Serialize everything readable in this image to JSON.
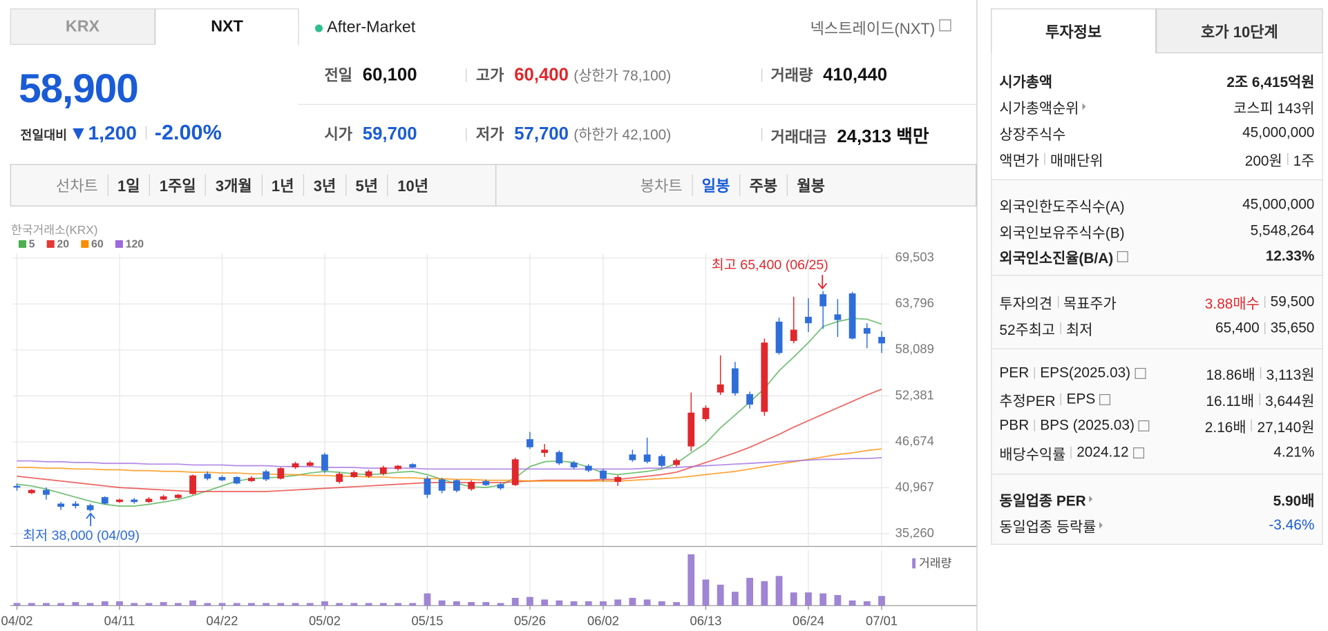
{
  "header": {
    "tabs": [
      "KRX",
      "NXT"
    ],
    "session": "After-Market",
    "venue": "넥스트레이드(NXT)"
  },
  "quote": {
    "price": "58,900",
    "change_label": "전일대비",
    "change": "▼1,200",
    "change_rate": "-2.00%"
  },
  "stats": {
    "rows": [
      [
        {
          "label": "전일",
          "value": "60,100"
        },
        {
          "label": "고가",
          "value": "60,400",
          "color": "#e0272c",
          "note": "(상한가 78,100)"
        },
        {
          "label": "거래량",
          "value": "410,440"
        }
      ],
      [
        {
          "label": "시가",
          "value": "59,700",
          "color": "#1a5bd6"
        },
        {
          "label": "저가",
          "value": "57,700",
          "color": "#1a5bd6",
          "note": "(하한가 42,100)"
        },
        {
          "label": "거래대금",
          "value": "24,313 백만"
        }
      ]
    ]
  },
  "toolbar": {
    "line_chart": {
      "label": "선차트",
      "periods": [
        "1일",
        "1주일",
        "3개월",
        "1년",
        "3년",
        "5년",
        "10년"
      ]
    },
    "candle_chart": {
      "label": "봉차트",
      "periods": [
        "일봉",
        "주봉",
        "월봉"
      ],
      "selected_color": "#1a5bd6"
    }
  },
  "chart_data": {
    "type": "candlestick",
    "source": "한국거래소(KRX)",
    "categories": [
      "04/02",
      null,
      null,
      null,
      null,
      null,
      null,
      "04/11",
      null,
      null,
      null,
      null,
      null,
      null,
      "04/22",
      null,
      null,
      null,
      null,
      null,
      null,
      "05/02",
      null,
      null,
      null,
      null,
      null,
      null,
      "05/15",
      null,
      null,
      null,
      null,
      null,
      null,
      "05/26",
      null,
      null,
      null,
      null,
      "06/02",
      null,
      null,
      null,
      null,
      null,
      null,
      "06/13",
      null,
      null,
      null,
      null,
      null,
      null,
      "06/24",
      null,
      null,
      null,
      null,
      "07/01"
    ],
    "ohlc": {
      "open": [
        41200,
        40300,
        40700,
        39000,
        39000,
        38800,
        39800,
        39200,
        39500,
        39200,
        39500,
        39700,
        40200,
        42700,
        42300,
        42300,
        41800,
        43000,
        42100,
        43500,
        43700,
        45100,
        41700,
        42300,
        42400,
        42700,
        43300,
        43900,
        42100,
        42000,
        41900,
        40800,
        41800,
        41400,
        41300,
        47000,
        45300,
        45400,
        44100,
        43700,
        43100,
        41700,
        45100,
        45100,
        44900,
        43800,
        46100,
        49500,
        52800,
        55800,
        52600,
        50400,
        61600,
        59200,
        62200,
        65000,
        62500,
        65100,
        60800,
        59700
      ],
      "high": [
        41500,
        40800,
        41000,
        39200,
        39300,
        39000,
        39900,
        39600,
        39700,
        39800,
        40100,
        40200,
        42600,
        43000,
        42500,
        42400,
        42400,
        43200,
        43500,
        44200,
        44300,
        45300,
        42900,
        43100,
        43200,
        43700,
        43800,
        44000,
        42400,
        42200,
        42000,
        41900,
        42000,
        41600,
        44700,
        47900,
        46400,
        45600,
        44300,
        43900,
        43300,
        42500,
        45700,
        47200,
        45100,
        44600,
        52800,
        51200,
        57400,
        56600,
        52900,
        59500,
        62100,
        64700,
        64500,
        65400,
        64400,
        65300,
        61400,
        60400
      ],
      "low": [
        40600,
        40200,
        39500,
        38200,
        38400,
        38000,
        38900,
        39100,
        39000,
        39100,
        39400,
        39600,
        40100,
        41900,
        41800,
        41400,
        41700,
        41800,
        42000,
        43300,
        43600,
        42800,
        41500,
        42200,
        42200,
        42500,
        43100,
        43400,
        39700,
        40300,
        40400,
        40600,
        41200,
        40700,
        41200,
        45800,
        44800,
        43800,
        43300,
        42900,
        41800,
        41200,
        44200,
        44000,
        43500,
        43600,
        45500,
        49200,
        52500,
        52400,
        50800,
        49900,
        57500,
        58900,
        60300,
        60700,
        59700,
        59400,
        58300,
        57700
      ],
      "close": [
        41000,
        40700,
        40100,
        38600,
        38700,
        38200,
        39000,
        39500,
        39200,
        39600,
        39900,
        40100,
        42500,
        42100,
        41900,
        41500,
        42200,
        42000,
        43400,
        44000,
        44100,
        43100,
        42700,
        42900,
        43000,
        43500,
        43700,
        43500,
        40100,
        40600,
        40600,
        41700,
        41300,
        40900,
        44500,
        46000,
        45700,
        44000,
        43500,
        43100,
        42100,
        42300,
        44400,
        44200,
        43700,
        44400,
        50300,
        50900,
        53800,
        52700,
        51300,
        59000,
        57700,
        60600,
        61400,
        63500,
        61800,
        59500,
        60100,
        58900
      ]
    },
    "up_color": "#e0272c",
    "down_color": "#2f6ed9",
    "ylim": [
      35260,
      69503
    ],
    "yticks": [
      {
        "value": 69503,
        "label": "69,503"
      },
      {
        "value": 63796,
        "label": "63,796"
      },
      {
        "value": 58089,
        "label": "58,089"
      },
      {
        "value": 52381,
        "label": "52,381"
      },
      {
        "value": 46674,
        "label": "46,674"
      },
      {
        "value": 40967,
        "label": "40,967"
      },
      {
        "value": 35260,
        "label": "35,260"
      }
    ],
    "grid": true,
    "series": [
      {
        "name": "5",
        "color": "#4caf50",
        "values": [
          41400,
          41200,
          40800,
          40300,
          39800,
          39300,
          38900,
          38700,
          38700,
          38900,
          39200,
          39500,
          40000,
          40600,
          41200,
          41800,
          42100,
          42200,
          42300,
          42500,
          42800,
          43000,
          42900,
          42700,
          42600,
          42700,
          42900,
          43000,
          42600,
          42000,
          41500,
          41100,
          41000,
          41300,
          42200,
          43600,
          44200,
          44300,
          44100,
          43500,
          42800,
          42600,
          42800,
          43000,
          43300,
          44000,
          45300,
          46500,
          48400,
          50000,
          51600,
          53300,
          55500,
          57200,
          59000,
          61000,
          61600,
          62000,
          61900,
          61300
        ]
      },
      {
        "name": "20",
        "color": "#e53935",
        "values": [
          42400,
          42200,
          42000,
          41800,
          41600,
          41400,
          41200,
          41000,
          40900,
          40800,
          40700,
          40600,
          40500,
          40500,
          40500,
          40500,
          40500,
          40500,
          40600,
          40700,
          40800,
          40900,
          41000,
          41100,
          41200,
          41300,
          41400,
          41500,
          41600,
          41600,
          41600,
          41600,
          41600,
          41600,
          41700,
          41800,
          41900,
          41900,
          41900,
          41900,
          42000,
          42000,
          42200,
          42400,
          42600,
          42900,
          43500,
          44100,
          44700,
          45300,
          46000,
          46800,
          47600,
          48500,
          49300,
          50100,
          50900,
          51700,
          52500,
          53200
        ]
      },
      {
        "name": "60",
        "color": "#fb8c00",
        "values": [
          43500,
          43500,
          43400,
          43400,
          43300,
          43300,
          43200,
          43200,
          43100,
          43100,
          43000,
          43000,
          42900,
          42900,
          42800,
          42800,
          42700,
          42700,
          42600,
          42600,
          42500,
          42500,
          42400,
          42400,
          42300,
          42300,
          42200,
          42200,
          42100,
          42100,
          42000,
          42000,
          41900,
          41900,
          41900,
          41800,
          41800,
          41800,
          41800,
          41800,
          41800,
          41800,
          41900,
          42000,
          42100,
          42200,
          42400,
          42600,
          42800,
          43000,
          43300,
          43600,
          43900,
          44200,
          44500,
          44800,
          45100,
          45300,
          45600,
          45800
        ]
      },
      {
        "name": "120",
        "color": "#9c6ade",
        "values": [
          44300,
          44300,
          44200,
          44200,
          44100,
          44100,
          44000,
          44000,
          44000,
          43900,
          43900,
          43900,
          43800,
          43800,
          43800,
          43700,
          43700,
          43700,
          43600,
          43600,
          43600,
          43500,
          43500,
          43500,
          43400,
          43400,
          43400,
          43400,
          43300,
          43300,
          43300,
          43300,
          43300,
          43300,
          43300,
          43300,
          43300,
          43300,
          43300,
          43300,
          43300,
          43300,
          43300,
          43400,
          43400,
          43500,
          43600,
          43700,
          43800,
          43900,
          44000,
          44100,
          44200,
          44300,
          44400,
          44500,
          44500,
          44600,
          44600,
          44700
        ]
      }
    ],
    "volume": {
      "label": "거래량",
      "color": "#9f85d4",
      "ylim": [
        0,
        2300000
      ],
      "values": [
        110000,
        110000,
        110000,
        110000,
        150000,
        110000,
        185000,
        185000,
        110000,
        110000,
        150000,
        110000,
        220000,
        110000,
        110000,
        110000,
        110000,
        110000,
        110000,
        110000,
        110000,
        185000,
        110000,
        110000,
        110000,
        110000,
        110000,
        110000,
        520000,
        220000,
        185000,
        150000,
        150000,
        110000,
        330000,
        370000,
        260000,
        220000,
        185000,
        185000,
        185000,
        260000,
        330000,
        260000,
        185000,
        150000,
        2180000,
        1110000,
        890000,
        590000,
        1180000,
        1040000,
        1260000,
        560000,
        560000,
        520000,
        450000,
        220000,
        185000,
        410440
      ]
    },
    "annotations": {
      "high": "최고 65,400 (06/25)",
      "low": "최저 38,000 (04/09)"
    }
  },
  "side_panel": {
    "tabs": [
      "투자정보",
      "호가 10단계"
    ],
    "sections": [
      [
        {
          "label": [
            "시가총액"
          ],
          "value": [
            "2조 6,415억원"
          ],
          "emphasis": true
        },
        {
          "label": [
            "시가총액순위"
          ],
          "value": [
            "코스피 143위"
          ],
          "link": true
        },
        {
          "label": [
            "상장주식수"
          ],
          "value": [
            "45,000,000"
          ]
        },
        {
          "label": [
            "액면가",
            "매매단위"
          ],
          "value": [
            "200원",
            "1주"
          ]
        }
      ],
      [
        {
          "label": [
            "외국인한도주식수(A)"
          ],
          "value": [
            "45,000,000"
          ]
        },
        {
          "label": [
            "외국인보유주식수(B)"
          ],
          "value": [
            "5,548,264"
          ]
        },
        {
          "label": [
            "외국인소진율(B/A)"
          ],
          "value": [
            "12.33%"
          ],
          "help": true,
          "emphasis": true
        }
      ],
      [
        {
          "label": [
            "투자의견",
            "목표주가"
          ],
          "value": [
            "3.88매수",
            "59,500"
          ],
          "value_color": "#e0272c"
        },
        {
          "label": [
            "52주최고",
            "최저"
          ],
          "value": [
            "65,400",
            "35,650"
          ]
        }
      ],
      [
        {
          "label": [
            "PER",
            "EPS(2025.03)"
          ],
          "value": [
            "18.86배",
            "3,113원"
          ],
          "help": true
        },
        {
          "label": [
            "추정PER",
            "EPS"
          ],
          "value": [
            "16.11배",
            "3,644원"
          ],
          "help": true
        },
        {
          "label": [
            "PBR",
            "BPS (2025.03)"
          ],
          "value": [
            "2.16배",
            "27,140원"
          ],
          "help": true
        },
        {
          "label": [
            "배당수익률",
            "2024.12"
          ],
          "value": [
            "4.21%"
          ],
          "help": true
        }
      ],
      [
        {
          "label": [
            "동일업종 PER"
          ],
          "value": [
            "5.90배"
          ],
          "link": true,
          "emphasis": true
        },
        {
          "label": [
            "동일업종 등락률"
          ],
          "value": [
            "-3.46%"
          ],
          "link": true,
          "value_color": "#1a5bd6"
        }
      ]
    ]
  }
}
